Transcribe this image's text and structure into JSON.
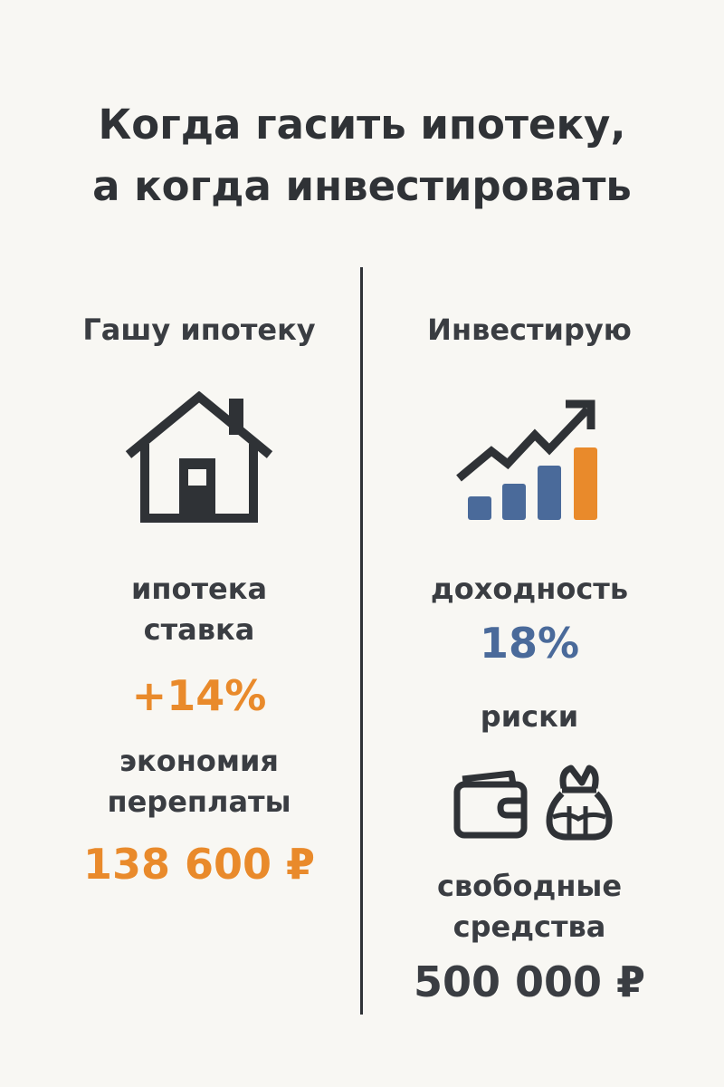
{
  "title": {
    "line1": "Когда гасить ипотеку,",
    "line2": "а когда инвестировать"
  },
  "left": {
    "heading": "Гашу ипотеку",
    "icon": "house-icon",
    "label_line1": "ипотека",
    "label_line2": "ставка",
    "rate": "+14%",
    "saving_line1": "экономия",
    "saving_line2": "переплаты",
    "saving_value": "138 600 ₽"
  },
  "right": {
    "heading": "Инвестирую",
    "icon": "growth-chart-icon",
    "yield_label": "доходность",
    "yield_value": "18%",
    "risk_label": "риски",
    "risk_icons": [
      "wallet-icon",
      "money-bag-icon"
    ],
    "funds_line1": "свободные",
    "funds_line2": "средства",
    "funds_value": "500 000 ₽"
  },
  "colors": {
    "background": "#f8f7f3",
    "text": "#2f3236",
    "orange": "#e98a2b",
    "blue": "#4a6a9a"
  }
}
